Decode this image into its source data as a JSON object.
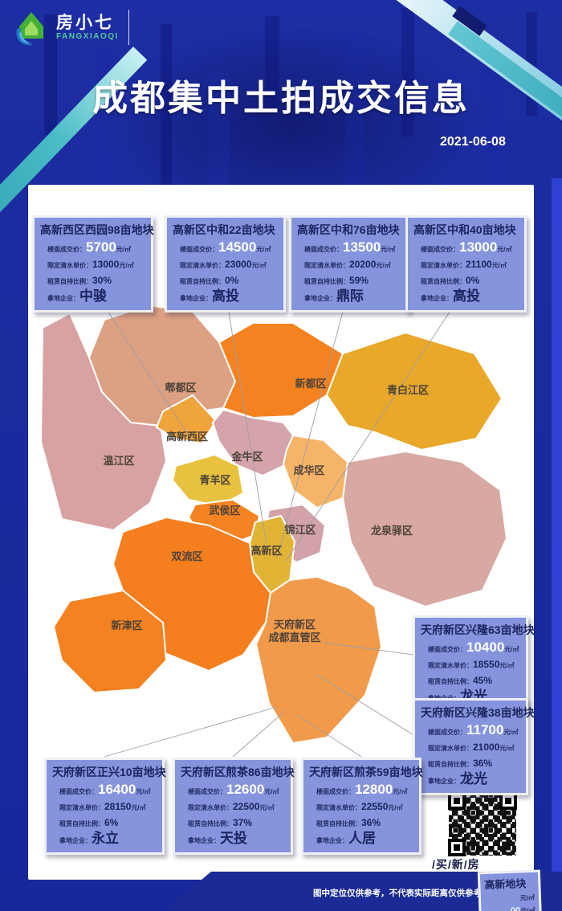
{
  "header": {
    "logo_zh": "房小七",
    "logo_en": "FANGXIAOQI",
    "title": "成都集中土拍成交信息",
    "date": "2021-06-08"
  },
  "card_labels": {
    "price": "楼面成交价：",
    "price_unit": "元/㎡",
    "limit": "限定清水单价：",
    "limit_unit": "元/㎡",
    "ratio": "租赁自持比例：",
    "company": "拿地企业："
  },
  "cards": [
    {
      "title": "高新西区西园98亩地块",
      "price": "5700",
      "limit": "13000",
      "ratio": "30%",
      "company": "中骏"
    },
    {
      "title": "高新区中和22亩地块",
      "price": "14500",
      "limit": "23000",
      "ratio": "0%",
      "company": "高投"
    },
    {
      "title": "高新区中和76亩地块",
      "price": "13500",
      "limit": "20200",
      "ratio": "59%",
      "company": "鼎际"
    },
    {
      "title": "高新区中和40亩地块",
      "price": "13000",
      "limit": "21100",
      "ratio": "0%",
      "company": "高投"
    },
    {
      "title": "天府新区兴隆63亩地块",
      "price": "10400",
      "limit": "18550",
      "ratio": "45%",
      "company": "龙光"
    },
    {
      "title": "天府新区兴隆38亩地块",
      "price": "11700",
      "limit": "21000",
      "ratio": "36%",
      "company": "龙光"
    },
    {
      "title": "天府新区正兴10亩地块",
      "price": "16400",
      "limit": "28150",
      "ratio": "6%",
      "company": "永立"
    },
    {
      "title": "天府新区煎茶86亩地块",
      "price": "12600",
      "limit": "22500",
      "ratio": "37%",
      "company": "天投"
    },
    {
      "title": "天府新区煎茶59亩地块",
      "price": "12800",
      "limit": "22550",
      "ratio": "36%",
      "company": "人居"
    }
  ],
  "map": {
    "districts": [
      {
        "key": "pidu",
        "name": "郫都区",
        "color": "#dca083"
      },
      {
        "key": "wenjiang",
        "name": "温江区",
        "color": "#d8a2a2"
      },
      {
        "key": "gaoxinxi",
        "name": "高新西区",
        "color": "#f0a43c"
      },
      {
        "key": "xindu",
        "name": "新都区",
        "color": "#f58220"
      },
      {
        "key": "qingbaijiang",
        "name": "青白江区",
        "color": "#e9a82a"
      },
      {
        "key": "jinniu",
        "name": "金牛区",
        "color": "#d4a4aa"
      },
      {
        "key": "chenghua",
        "name": "成华区",
        "color": "#f6b469"
      },
      {
        "key": "qingyang",
        "name": "青羊区",
        "color": "#e8c23f"
      },
      {
        "key": "wuhou",
        "name": "武侯区",
        "color": "#f58321"
      },
      {
        "key": "jinjiang",
        "name": "锦江区",
        "color": "#d2a2a8"
      },
      {
        "key": "longquanyi",
        "name": "龙泉驿区",
        "color": "#d8a8a3"
      },
      {
        "key": "gaoxin",
        "name": "高新区",
        "color": "#e2b435"
      },
      {
        "key": "shuangliu",
        "name": "双流区",
        "color": "#f57f1e"
      },
      {
        "key": "xinjin",
        "name": "新津区",
        "color": "#f58220"
      },
      {
        "key": "tianfu",
        "name": "天府新区\n成都直管区",
        "color": "#f09a4a"
      }
    ]
  },
  "qr": {
    "caption": "/买/新/房"
  },
  "partial_card": {
    "title": "高新地块",
    "fragment1": "元/㎡",
    "fragment2": "00元/㎡"
  },
  "footer": {
    "disclaimer": "图中定位仅供参考，不代表实际距离仅供参考实际距离"
  },
  "colors": {
    "background": "#1b2b9c",
    "card_bg": "#8594dc",
    "card_text": "#1a2560",
    "ribbon_teal": "#3fb6c9",
    "logo_green": "#45b035",
    "logo_swoosh_blue": "#1f7fc4"
  }
}
